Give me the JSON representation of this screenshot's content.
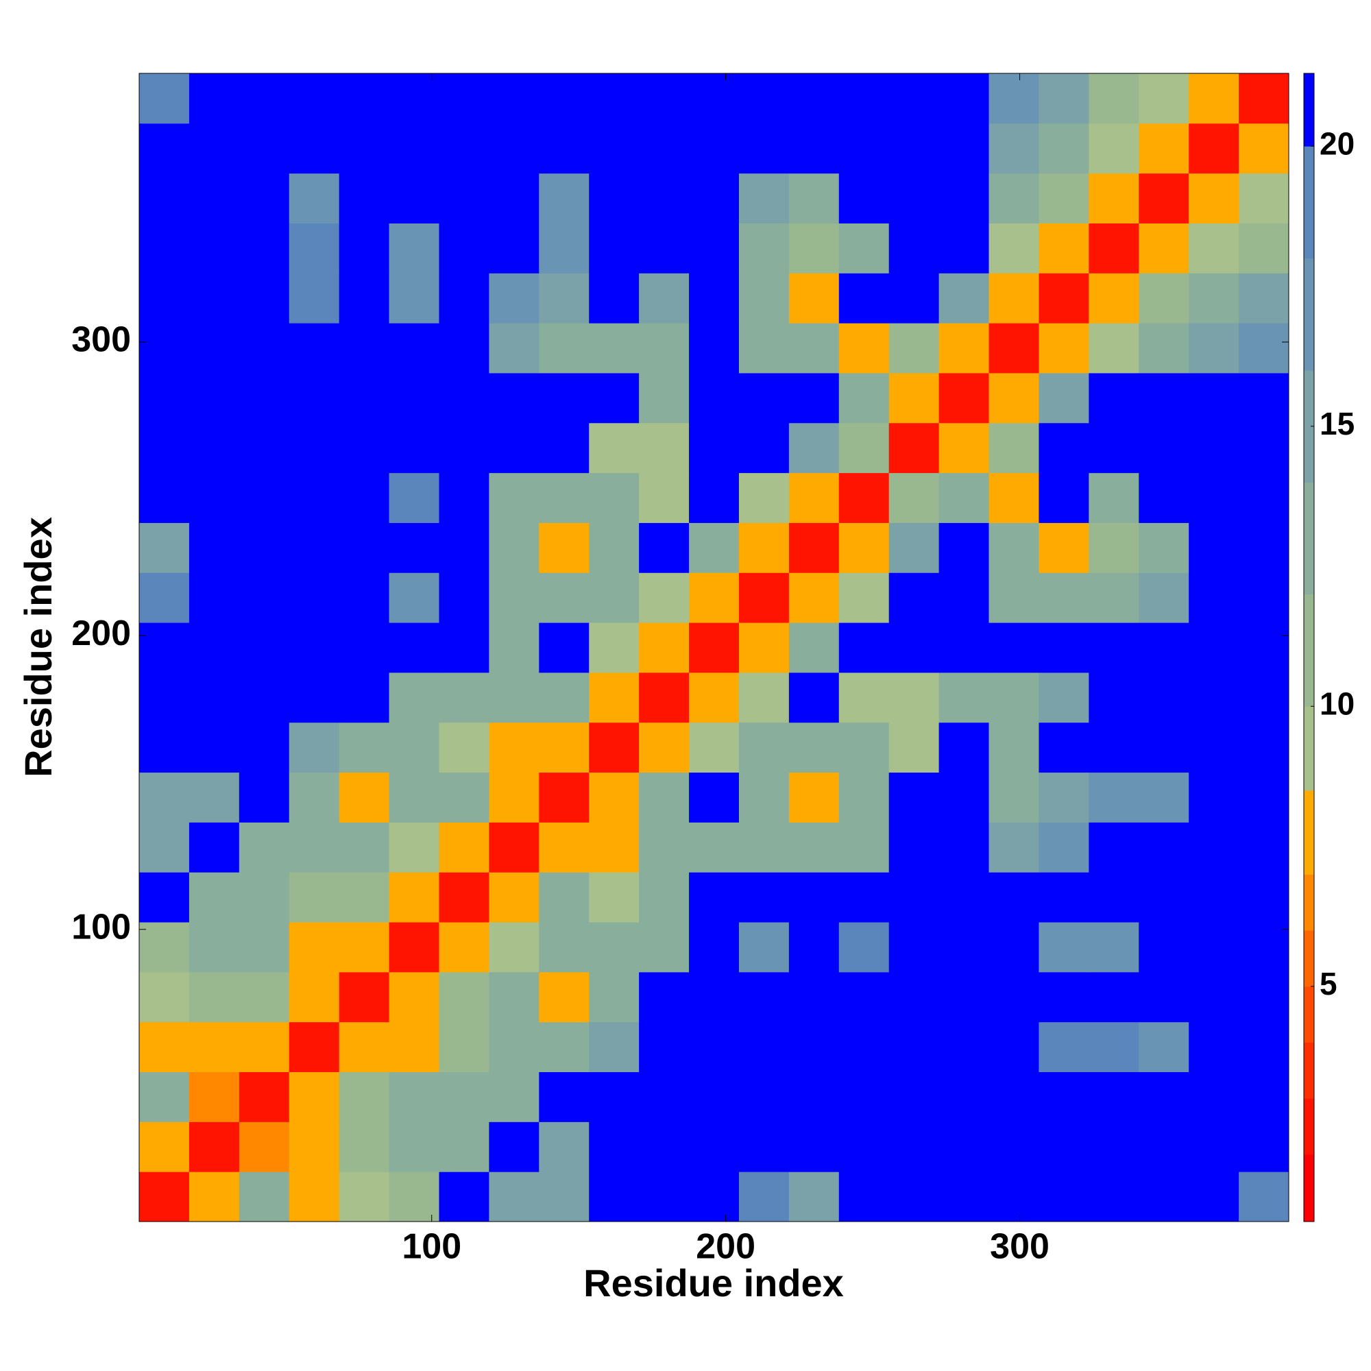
{
  "chart_data": {
    "type": "heatmap",
    "xlabel": "Residue index",
    "ylabel": "Residue index",
    "xlim": [
      0.5,
      391.5
    ],
    "ylim": [
      0.5,
      391.5
    ],
    "xticks": [
      100,
      200,
      300
    ],
    "yticks": [
      100,
      200,
      300
    ],
    "grid": false,
    "z": [
      [
        2,
        8,
        12,
        7,
        9,
        11,
        22,
        14,
        14,
        22,
        22,
        22,
        18,
        15,
        22,
        22,
        22,
        22,
        22,
        22,
        22,
        22,
        18
      ],
      [
        8,
        2,
        6,
        8,
        11,
        12,
        12,
        22,
        14,
        22,
        22,
        22,
        22,
        22,
        22,
        22,
        22,
        22,
        22,
        22,
        22,
        22,
        22
      ],
      [
        12,
        6,
        2,
        8,
        10,
        12,
        12,
        12,
        22,
        22,
        22,
        22,
        22,
        22,
        22,
        22,
        22,
        22,
        22,
        22,
        22,
        22,
        22
      ],
      [
        7,
        8,
        8,
        2,
        8,
        8,
        10,
        12,
        12,
        14,
        22,
        22,
        22,
        22,
        22,
        22,
        22,
        22,
        18,
        18,
        17,
        22,
        22
      ],
      [
        9,
        11,
        10,
        8,
        2,
        8,
        10,
        12,
        7,
        12,
        22,
        22,
        22,
        22,
        22,
        22,
        22,
        22,
        22,
        22,
        22,
        22,
        22
      ],
      [
        11,
        12,
        12,
        8,
        8,
        2,
        8,
        9,
        12,
        12,
        12,
        22,
        17,
        22,
        18,
        22,
        22,
        22,
        17,
        17,
        22,
        22,
        22
      ],
      [
        22,
        12,
        12,
        10,
        10,
        8,
        2,
        8,
        12,
        9,
        12,
        22,
        22,
        22,
        22,
        22,
        22,
        22,
        22,
        22,
        22,
        22,
        22
      ],
      [
        14,
        22,
        12,
        12,
        12,
        9,
        8,
        2,
        8,
        8,
        12,
        12,
        12,
        12,
        13,
        22,
        22,
        14,
        16,
        22,
        22,
        22,
        22
      ],
      [
        14,
        14,
        22,
        12,
        7,
        12,
        12,
        8,
        2,
        8,
        12,
        22,
        12,
        8,
        12,
        22,
        22,
        13,
        14,
        17,
        17,
        22,
        22
      ],
      [
        22,
        22,
        22,
        14,
        12,
        12,
        9,
        8,
        8,
        2,
        8,
        9,
        12,
        12,
        12,
        9,
        22,
        12,
        22,
        22,
        22,
        22,
        22
      ],
      [
        22,
        22,
        22,
        22,
        22,
        12,
        12,
        12,
        12,
        8,
        2,
        8,
        9,
        22,
        9,
        9,
        12,
        13,
        15,
        22,
        22,
        22,
        22
      ],
      [
        22,
        22,
        22,
        22,
        22,
        22,
        22,
        12,
        22,
        9,
        8,
        2,
        8,
        13,
        22,
        22,
        22,
        22,
        22,
        22,
        22,
        22,
        22
      ],
      [
        18,
        22,
        22,
        22,
        22,
        17,
        22,
        12,
        12,
        12,
        9,
        8,
        2,
        8,
        9,
        22,
        22,
        12,
        12,
        13,
        14,
        22,
        22
      ],
      [
        15,
        22,
        22,
        22,
        22,
        22,
        22,
        12,
        8,
        12,
        22,
        13,
        8,
        2,
        8,
        14,
        22,
        12,
        8,
        10,
        13,
        22,
        22
      ],
      [
        22,
        22,
        22,
        22,
        22,
        18,
        22,
        13,
        12,
        12,
        9,
        22,
        9,
        8,
        2,
        10,
        12,
        8,
        22,
        12,
        22,
        22,
        22
      ],
      [
        22,
        22,
        22,
        22,
        22,
        22,
        22,
        22,
        22,
        9,
        9,
        22,
        22,
        14,
        10,
        2,
        7,
        10,
        22,
        22,
        22,
        22,
        22
      ],
      [
        22,
        22,
        22,
        22,
        22,
        22,
        22,
        22,
        22,
        22,
        12,
        22,
        22,
        22,
        12,
        7,
        2,
        8,
        14,
        22,
        22,
        22,
        22
      ],
      [
        22,
        22,
        22,
        22,
        22,
        22,
        22,
        14,
        13,
        12,
        13,
        22,
        12,
        12,
        8,
        10,
        8,
        2,
        8,
        9,
        13,
        14,
        16
      ],
      [
        22,
        22,
        22,
        18,
        22,
        17,
        22,
        16,
        14,
        22,
        15,
        22,
        12,
        8,
        22,
        22,
        14,
        8,
        2,
        7,
        10,
        12,
        14
      ],
      [
        22,
        22,
        22,
        18,
        22,
        17,
        22,
        22,
        17,
        22,
        22,
        22,
        13,
        10,
        12,
        22,
        22,
        9,
        7,
        2,
        7,
        9,
        11
      ],
      [
        22,
        22,
        22,
        17,
        22,
        22,
        22,
        22,
        17,
        22,
        22,
        22,
        14,
        13,
        22,
        22,
        22,
        13,
        10,
        7,
        2,
        7,
        9
      ],
      [
        22,
        22,
        22,
        22,
        22,
        22,
        22,
        22,
        22,
        22,
        22,
        22,
        22,
        22,
        22,
        22,
        22,
        14,
        12,
        9,
        7,
        2,
        7
      ],
      [
        18,
        22,
        22,
        22,
        22,
        22,
        22,
        22,
        22,
        22,
        22,
        22,
        22,
        22,
        22,
        22,
        22,
        16,
        14,
        11,
        9,
        7,
        2
      ]
    ],
    "colorbar": {
      "levels": [
        0.8,
        2,
        3,
        4,
        5,
        6,
        7,
        8.5,
        10,
        12,
        14,
        16,
        18,
        20,
        21.3
      ],
      "colors": [
        "#ff0000",
        "#ff1400",
        "#ff2e00",
        "#ff4a00",
        "#ff6600",
        "#ff8800",
        "#ffaa00",
        "#a8c08c",
        "#9ab890",
        "#8aae9c",
        "#7aa2a8",
        "#6a94b4",
        "#5a86bc",
        "#0000ff"
      ],
      "ticks": [
        5,
        10,
        15,
        20
      ]
    }
  }
}
